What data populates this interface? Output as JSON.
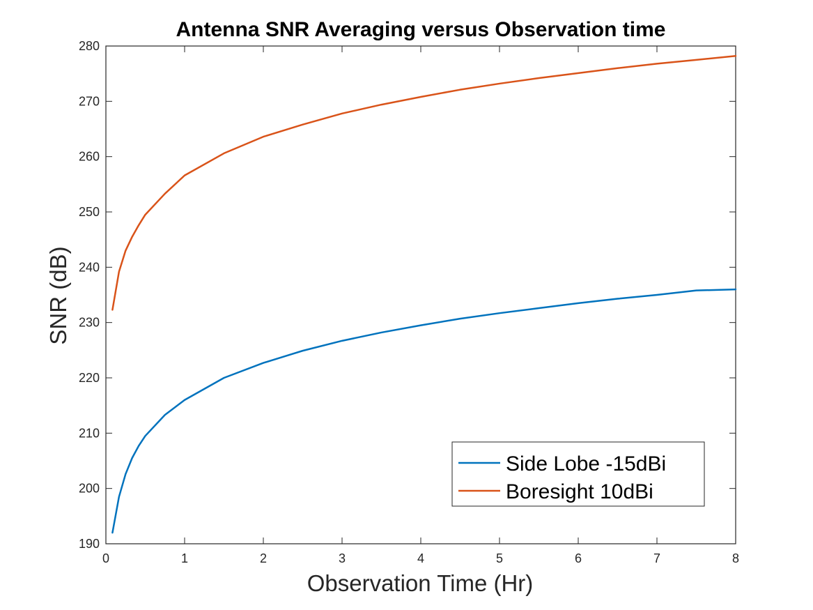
{
  "chart_data": {
    "type": "line",
    "title": "Antenna SNR Averaging versus Observation time",
    "xlabel": "Observation Time (Hr)",
    "ylabel": "SNR (dB)",
    "xlim": [
      0,
      8
    ],
    "ylim": [
      190,
      280
    ],
    "xticks": [
      "0",
      "1",
      "2",
      "3",
      "4",
      "5",
      "6",
      "7",
      "8"
    ],
    "yticks": [
      "190",
      "200",
      "210",
      "220",
      "230",
      "240",
      "250",
      "260",
      "270",
      "280"
    ],
    "grid": false,
    "legend_position": "bottom-right",
    "series": [
      {
        "name": "Side Lobe -15dBi",
        "color": "#0072BD",
        "x": [
          0.0833,
          0.1667,
          0.25,
          0.3333,
          0.4167,
          0.5,
          0.75,
          1,
          1.5,
          2,
          2.5,
          3,
          3.5,
          4,
          4.5,
          5,
          5.5,
          6,
          6.5,
          7,
          7.5,
          8
        ],
        "y": [
          192.0,
          198.5,
          202.6,
          205.5,
          207.7,
          209.5,
          213.3,
          216.0,
          220.0,
          222.7,
          224.9,
          226.7,
          228.2,
          229.5,
          230.7,
          231.7,
          232.6,
          233.5,
          234.3,
          235.0,
          235.8,
          236.0
        ]
      },
      {
        "name": "Boresight 10dBi",
        "color": "#D95319",
        "x": [
          0.0833,
          0.1667,
          0.25,
          0.3333,
          0.4167,
          0.5,
          0.75,
          1,
          1.5,
          2,
          2.5,
          3,
          3.5,
          4,
          4.5,
          5,
          5.5,
          6,
          6.5,
          7,
          7.5,
          8
        ],
        "y": [
          232.3,
          239.2,
          243.0,
          245.5,
          247.6,
          249.5,
          253.3,
          256.6,
          260.6,
          263.6,
          265.8,
          267.8,
          269.4,
          270.8,
          272.1,
          273.2,
          274.2,
          275.1,
          276.0,
          276.8,
          277.5,
          278.2
        ]
      }
    ]
  }
}
